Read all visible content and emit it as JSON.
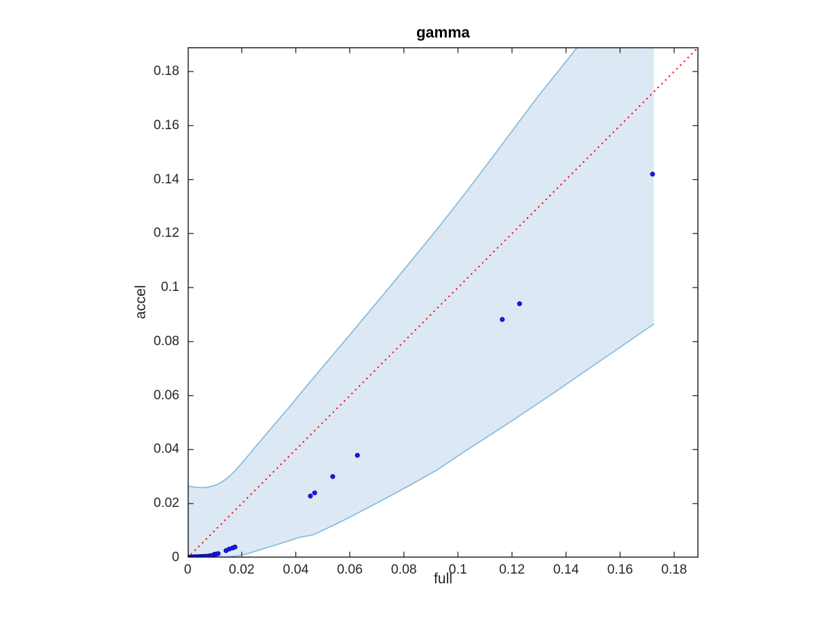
{
  "chart_data": {
    "type": "scatter",
    "title": "gamma",
    "xlabel": "full",
    "ylabel": "accel",
    "xlim": [
      0,
      0.189
    ],
    "ylim": [
      0,
      0.189
    ],
    "grid": false,
    "box": true,
    "axis_color": "#262626",
    "xticks": {
      "values": [
        0,
        0.02,
        0.04,
        0.06,
        0.08,
        0.1,
        0.12,
        0.14,
        0.16,
        0.18
      ],
      "labels": [
        "0",
        "0.02",
        "0.04",
        "0.06",
        "0.08",
        "0.1",
        "0.12",
        "0.14",
        "0.16",
        "0.18"
      ]
    },
    "yticks": {
      "values": [
        0,
        0.02,
        0.04,
        0.06,
        0.08,
        0.1,
        0.12,
        0.14,
        0.16,
        0.18
      ],
      "labels": [
        "0",
        "0.02",
        "0.04",
        "0.06",
        "0.08",
        "0.1",
        "0.12",
        "0.14",
        "0.16",
        "0.18"
      ]
    },
    "identity_line": {
      "style": "dotted",
      "color": "#ff1212",
      "from": [
        0,
        0
      ],
      "to": [
        0.189,
        0.189
      ]
    },
    "confidence_band": {
      "fill_color": "#dce9f5",
      "edge_color": "#85badd",
      "x_max_cap": 0.1725,
      "upper": [
        [
          0.0,
          0.0265
        ],
        [
          0.0025,
          0.0261
        ],
        [
          0.005,
          0.0259
        ],
        [
          0.0075,
          0.0261
        ],
        [
          0.01,
          0.0267
        ],
        [
          0.0125,
          0.0279
        ],
        [
          0.015,
          0.0297
        ],
        [
          0.0175,
          0.0321
        ],
        [
          0.021,
          0.0361
        ],
        [
          0.026,
          0.0421
        ],
        [
          0.032,
          0.0492
        ],
        [
          0.038,
          0.0562
        ],
        [
          0.043,
          0.0623
        ],
        [
          0.052,
          0.073
        ],
        [
          0.062,
          0.0849
        ],
        [
          0.072,
          0.0969
        ],
        [
          0.082,
          0.109
        ],
        [
          0.092,
          0.1213
        ],
        [
          0.102,
          0.134
        ],
        [
          0.115,
          0.1512
        ],
        [
          0.129,
          0.17
        ],
        [
          0.1442,
          0.189
        ]
      ],
      "lower": [
        [
          0.0,
          0.0002
        ],
        [
          0.008,
          0.0002
        ],
        [
          0.014,
          0.0003
        ],
        [
          0.018,
          0.0006
        ],
        [
          0.022,
          0.0014
        ],
        [
          0.027,
          0.003
        ],
        [
          0.033,
          0.0048
        ],
        [
          0.037,
          0.0061
        ],
        [
          0.041,
          0.0074
        ],
        [
          0.0466,
          0.0085
        ],
        [
          0.054,
          0.012
        ],
        [
          0.062,
          0.016
        ],
        [
          0.072,
          0.0213
        ],
        [
          0.082,
          0.0267
        ],
        [
          0.092,
          0.0323
        ],
        [
          0.102,
          0.039
        ],
        [
          0.112,
          0.0455
        ],
        [
          0.122,
          0.052
        ],
        [
          0.135,
          0.0607
        ],
        [
          0.148,
          0.0697
        ],
        [
          0.16,
          0.0779
        ],
        [
          0.1725,
          0.0865
        ]
      ]
    },
    "points": {
      "color": "#1a1af0",
      "edge_color": "#0000a0",
      "marker": "dot",
      "data": [
        [
          0.0004,
          0.0002
        ],
        [
          0.0009,
          0.0002
        ],
        [
          0.0014,
          0.0002
        ],
        [
          0.0019,
          0.0002
        ],
        [
          0.0024,
          0.0003
        ],
        [
          0.0029,
          0.0003
        ],
        [
          0.0034,
          0.0003
        ],
        [
          0.004,
          0.0003
        ],
        [
          0.0046,
          0.0004
        ],
        [
          0.0052,
          0.0004
        ],
        [
          0.0058,
          0.0004
        ],
        [
          0.0064,
          0.0005
        ],
        [
          0.007,
          0.0005
        ],
        [
          0.0077,
          0.0006
        ],
        [
          0.0084,
          0.0007
        ],
        [
          0.0091,
          0.0008
        ],
        [
          0.0099,
          0.0012
        ],
        [
          0.0106,
          0.0013
        ],
        [
          0.0113,
          0.0015
        ],
        [
          0.0142,
          0.0026
        ],
        [
          0.0154,
          0.0032
        ],
        [
          0.0167,
          0.0036
        ],
        [
          0.0175,
          0.0039
        ],
        [
          0.0454,
          0.0228
        ],
        [
          0.047,
          0.024
        ],
        [
          0.0537,
          0.03
        ],
        [
          0.0628,
          0.0379
        ],
        [
          0.1164,
          0.0882
        ],
        [
          0.1228,
          0.094
        ],
        [
          0.172,
          0.142
        ]
      ]
    }
  }
}
